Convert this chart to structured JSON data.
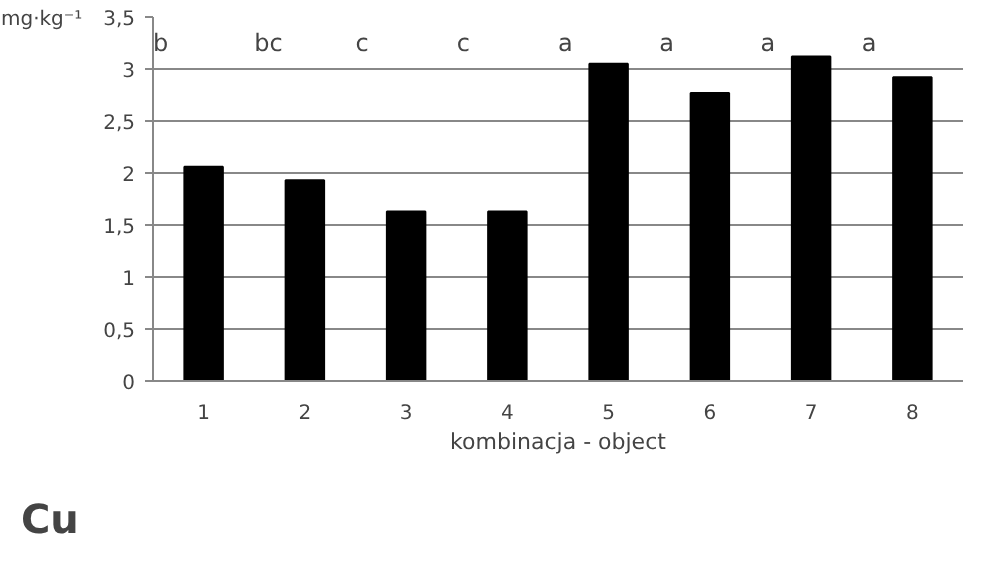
{
  "chart_data": {
    "type": "bar",
    "ylabel": "mg·kg⁻¹",
    "xlabel": "kombinacja - object",
    "categories": [
      "1",
      "2",
      "3",
      "4",
      "5",
      "6",
      "7",
      "8"
    ],
    "values": [
      2.06,
      1.93,
      1.63,
      1.63,
      3.05,
      2.77,
      3.12,
      2.92
    ],
    "color": "#000000",
    "ylim": [
      0,
      3.5
    ],
    "yticks": [
      {
        "value": 0,
        "label": "0"
      },
      {
        "value": 0.5,
        "label": "0,5"
      },
      {
        "value": 1,
        "label": "1"
      },
      {
        "value": 1.5,
        "label": "1,5"
      },
      {
        "value": 2,
        "label": "2"
      },
      {
        "value": 2.5,
        "label": "2,5"
      },
      {
        "value": 3,
        "label": "3"
      },
      {
        "value": 3.5,
        "label": "3,5"
      }
    ],
    "grid": "y",
    "annotations": [
      "b",
      "bc",
      "c",
      "c",
      "a",
      "a",
      "a",
      "a",
      "Cu"
    ]
  }
}
